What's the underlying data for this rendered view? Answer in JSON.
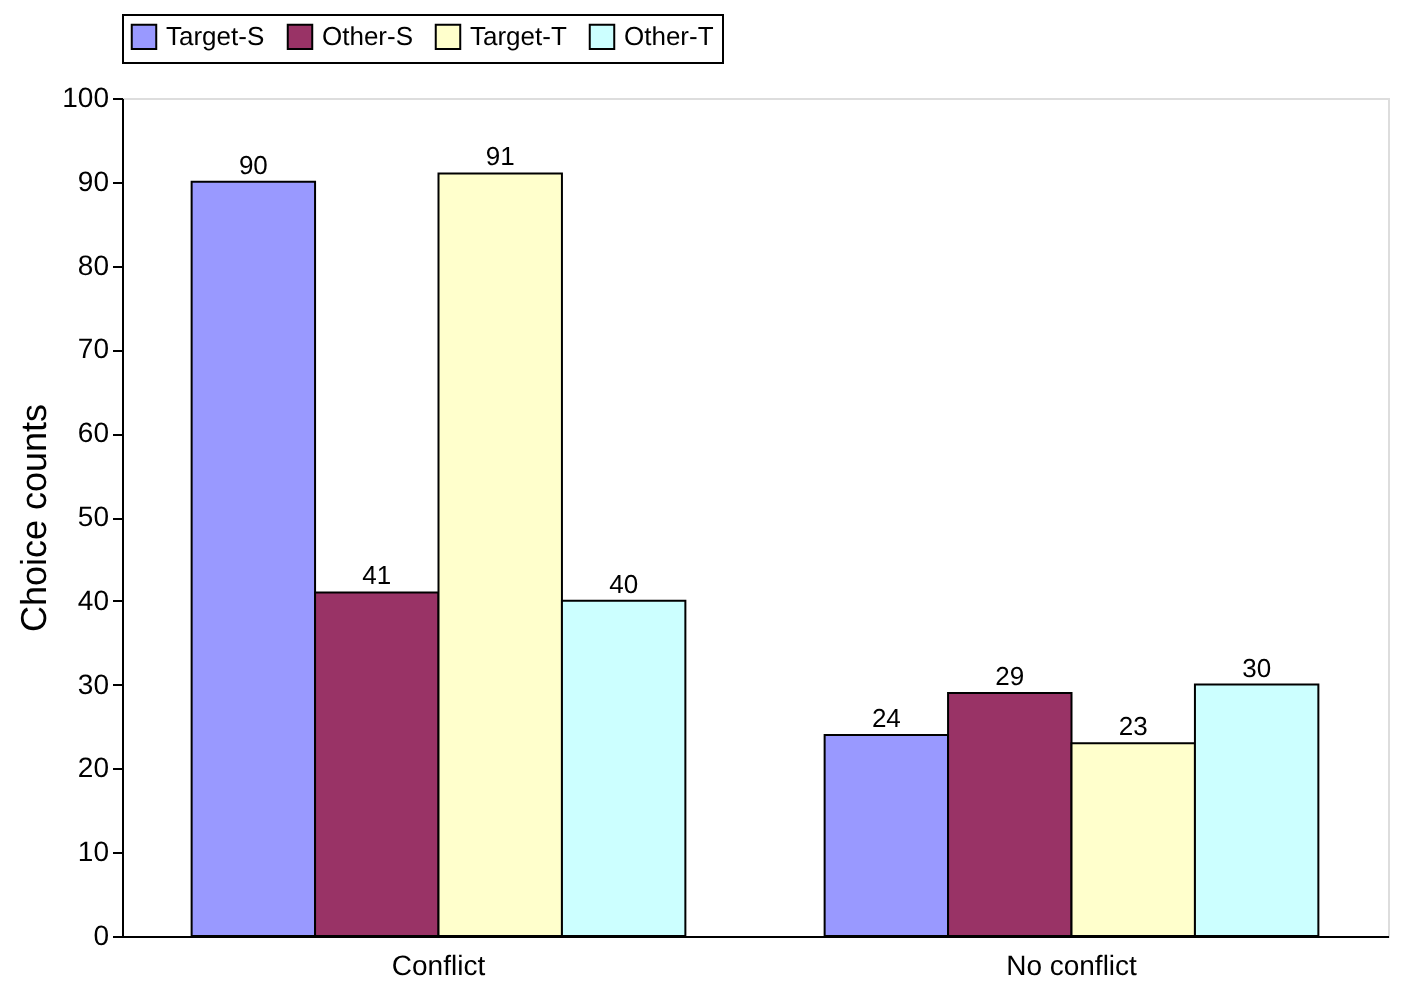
{
  "chart_data": {
    "type": "bar",
    "ylabel": "Choice counts",
    "categories": [
      "Conflict",
      "No conflict"
    ],
    "series": [
      {
        "name": "Target-S",
        "color": "#9999ff",
        "values": [
          90,
          24
        ]
      },
      {
        "name": "Other-S",
        "color": "#993366",
        "values": [
          41,
          29
        ]
      },
      {
        "name": "Target-T",
        "color": "#ffffcc",
        "values": [
          91,
          23
        ]
      },
      {
        "name": "Other-T",
        "color": "#ccffff",
        "values": [
          40,
          30
        ]
      }
    ],
    "ylim": [
      0,
      100
    ],
    "yticks": [
      0,
      10,
      20,
      30,
      40,
      50,
      60,
      70,
      80,
      90,
      100
    ],
    "grid": false,
    "legend": "top",
    "data_labels": true
  }
}
